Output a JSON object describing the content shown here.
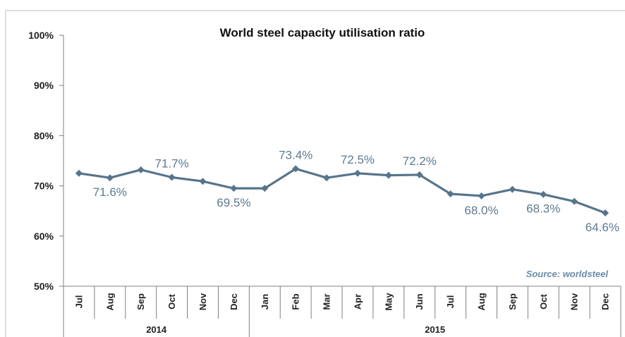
{
  "chart_data": {
    "type": "line",
    "title": "World steel capacity utilisation ratio",
    "source": "Source: worldsteel",
    "categories": [
      "Jul",
      "Aug",
      "Sep",
      "Oct",
      "Nov",
      "Dec",
      "Jan",
      "Feb",
      "Mar",
      "Apr",
      "May",
      "Jun",
      "Jul",
      "Aug",
      "Sep",
      "Oct",
      "Nov",
      "Dec"
    ],
    "years": [
      {
        "label": "2014",
        "start": 0,
        "end": 5
      },
      {
        "label": "2015",
        "start": 6,
        "end": 17
      }
    ],
    "series": [
      {
        "values": [
          72.5,
          71.6,
          73.2,
          71.7,
          70.9,
          69.5,
          69.5,
          73.4,
          71.6,
          72.5,
          72.1,
          72.2,
          68.4,
          68.0,
          69.3,
          68.3,
          66.9,
          64.6
        ]
      }
    ],
    "data_labels": [
      {
        "index": 1,
        "text": "71.6%",
        "pos": "below"
      },
      {
        "index": 3,
        "text": "71.7%",
        "pos": "above"
      },
      {
        "index": 5,
        "text": "69.5%",
        "pos": "below"
      },
      {
        "index": 7,
        "text": "73.4%",
        "pos": "above"
      },
      {
        "index": 9,
        "text": "72.5%",
        "pos": "above"
      },
      {
        "index": 11,
        "text": "72.2%",
        "pos": "above"
      },
      {
        "index": 13,
        "text": "68.0%",
        "pos": "below"
      },
      {
        "index": 15,
        "text": "68.3%",
        "pos": "below"
      },
      {
        "index": 17,
        "text": "64.6%",
        "pos": "below"
      }
    ],
    "ylim": [
      50,
      100
    ],
    "yticks": [
      "50%",
      "60%",
      "70%",
      "80%",
      "90%",
      "100%"
    ],
    "ytick_values": [
      50,
      60,
      70,
      80,
      90,
      100
    ],
    "grid": false,
    "line_color": "#56758c"
  }
}
